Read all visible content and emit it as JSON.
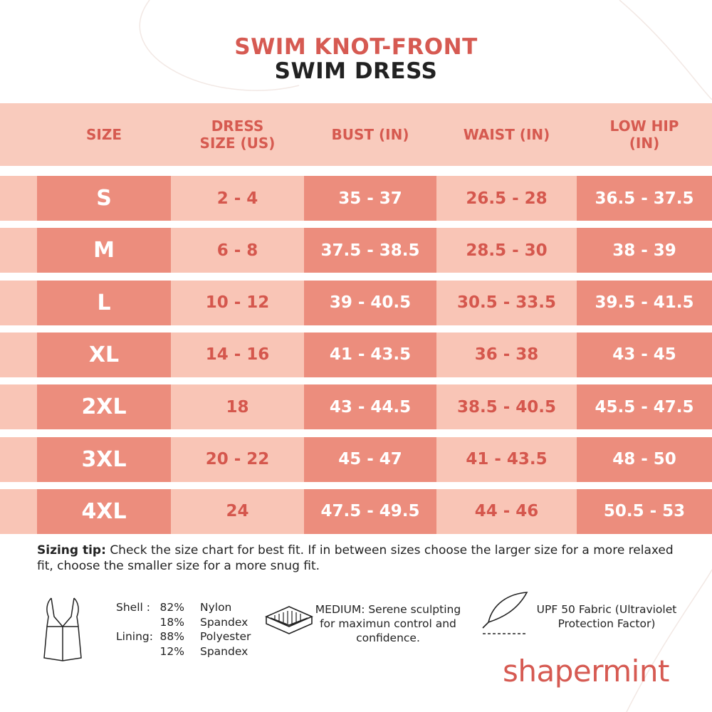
{
  "title": {
    "line1": "SWIM KNOT-FRONT",
    "line2": "SWIM DRESS"
  },
  "table": {
    "headers": [
      "SIZE",
      "DRESS SIZE (US)",
      "BUST (IN)",
      "WAIST (IN)",
      "LOW HIP (IN)"
    ],
    "rows": [
      [
        "S",
        "2 - 4",
        "35 - 37",
        "26.5 - 28",
        "36.5 - 37.5"
      ],
      [
        "M",
        "6 - 8",
        "37.5 - 38.5",
        "28.5 - 30",
        "38 - 39"
      ],
      [
        "L",
        "10 - 12",
        "39 - 40.5",
        "30.5 - 33.5",
        "39.5 - 41.5"
      ],
      [
        "XL",
        "14 - 16",
        "41 - 43.5",
        "36 - 38",
        "43 - 45"
      ],
      [
        "2XL",
        "18",
        "43 - 44.5",
        "38.5 - 40.5",
        "45.5 - 47.5"
      ],
      [
        "3XL",
        "20 - 22",
        "45 - 47",
        "41 - 43.5",
        "48 - 50"
      ],
      [
        "4XL",
        "24",
        "47.5 - 49.5",
        "44 - 46",
        "50.5 - 53"
      ]
    ]
  },
  "tip": {
    "label": "Sizing tip:",
    "text": "Check the size chart for best fit. If in between sizes choose the larger size for a more relaxed fit, choose the smaller size for a more snug fit."
  },
  "fabric": [
    {
      "label": "Shell :",
      "parts": [
        [
          "82%",
          "Nylon"
        ],
        [
          "18%",
          "Spandex"
        ]
      ]
    },
    {
      "label": "Lining:",
      "parts": [
        [
          "88%",
          "Polyester"
        ],
        [
          "12%",
          "Spandex"
        ]
      ]
    }
  ],
  "compression": "MEDIUM: Serene sculpting for maximun control and confidence.",
  "upf": "UPF 50 Fabric (Ultraviolet Protection Factor)",
  "brand": "shapermint"
}
